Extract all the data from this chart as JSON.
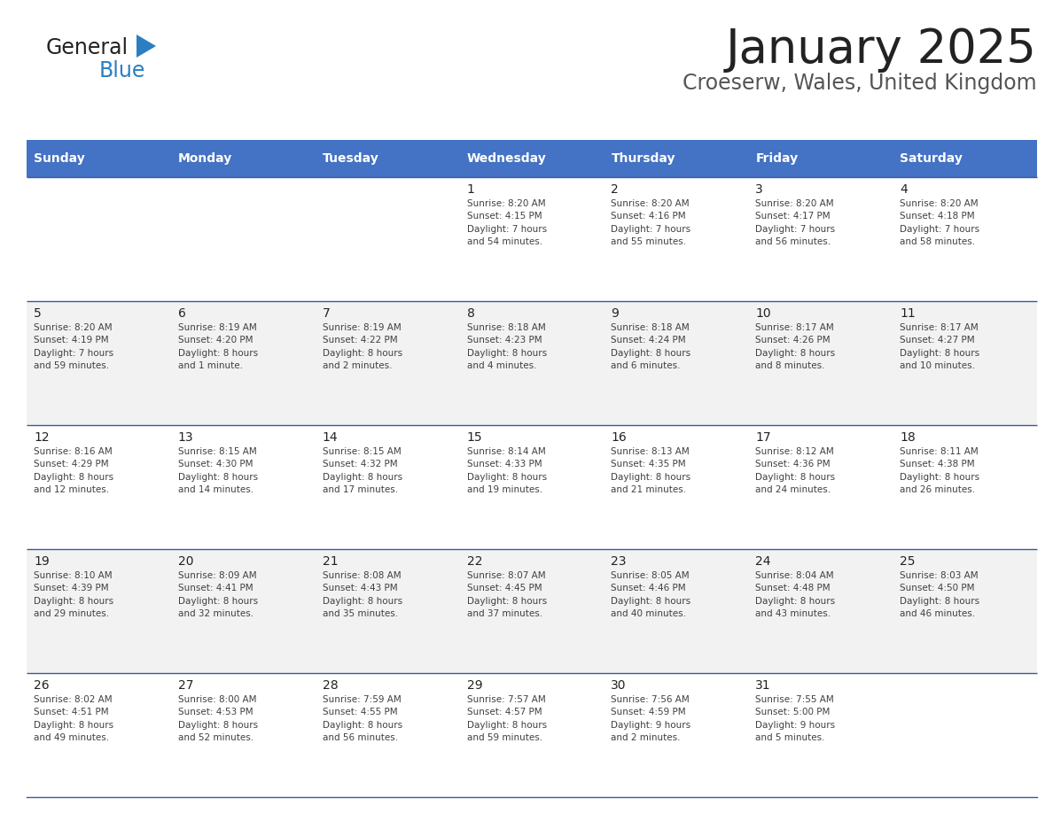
{
  "title": "January 2025",
  "subtitle": "Croeserw, Wales, United Kingdom",
  "header_bg": "#4472C4",
  "header_text_color": "#FFFFFF",
  "header_days": [
    "Sunday",
    "Monday",
    "Tuesday",
    "Wednesday",
    "Thursday",
    "Friday",
    "Saturday"
  ],
  "row_bg_even": "#FFFFFF",
  "row_bg_odd": "#F2F2F2",
  "separator_color": "#3A5A96",
  "cell_text_color": "#404040",
  "day_number_color": "#222222",
  "calendar": [
    [
      {
        "day": "",
        "info": ""
      },
      {
        "day": "",
        "info": ""
      },
      {
        "day": "",
        "info": ""
      },
      {
        "day": "1",
        "info": "Sunrise: 8:20 AM\nSunset: 4:15 PM\nDaylight: 7 hours\nand 54 minutes."
      },
      {
        "day": "2",
        "info": "Sunrise: 8:20 AM\nSunset: 4:16 PM\nDaylight: 7 hours\nand 55 minutes."
      },
      {
        "day": "3",
        "info": "Sunrise: 8:20 AM\nSunset: 4:17 PM\nDaylight: 7 hours\nand 56 minutes."
      },
      {
        "day": "4",
        "info": "Sunrise: 8:20 AM\nSunset: 4:18 PM\nDaylight: 7 hours\nand 58 minutes."
      }
    ],
    [
      {
        "day": "5",
        "info": "Sunrise: 8:20 AM\nSunset: 4:19 PM\nDaylight: 7 hours\nand 59 minutes."
      },
      {
        "day": "6",
        "info": "Sunrise: 8:19 AM\nSunset: 4:20 PM\nDaylight: 8 hours\nand 1 minute."
      },
      {
        "day": "7",
        "info": "Sunrise: 8:19 AM\nSunset: 4:22 PM\nDaylight: 8 hours\nand 2 minutes."
      },
      {
        "day": "8",
        "info": "Sunrise: 8:18 AM\nSunset: 4:23 PM\nDaylight: 8 hours\nand 4 minutes."
      },
      {
        "day": "9",
        "info": "Sunrise: 8:18 AM\nSunset: 4:24 PM\nDaylight: 8 hours\nand 6 minutes."
      },
      {
        "day": "10",
        "info": "Sunrise: 8:17 AM\nSunset: 4:26 PM\nDaylight: 8 hours\nand 8 minutes."
      },
      {
        "day": "11",
        "info": "Sunrise: 8:17 AM\nSunset: 4:27 PM\nDaylight: 8 hours\nand 10 minutes."
      }
    ],
    [
      {
        "day": "12",
        "info": "Sunrise: 8:16 AM\nSunset: 4:29 PM\nDaylight: 8 hours\nand 12 minutes."
      },
      {
        "day": "13",
        "info": "Sunrise: 8:15 AM\nSunset: 4:30 PM\nDaylight: 8 hours\nand 14 minutes."
      },
      {
        "day": "14",
        "info": "Sunrise: 8:15 AM\nSunset: 4:32 PM\nDaylight: 8 hours\nand 17 minutes."
      },
      {
        "day": "15",
        "info": "Sunrise: 8:14 AM\nSunset: 4:33 PM\nDaylight: 8 hours\nand 19 minutes."
      },
      {
        "day": "16",
        "info": "Sunrise: 8:13 AM\nSunset: 4:35 PM\nDaylight: 8 hours\nand 21 minutes."
      },
      {
        "day": "17",
        "info": "Sunrise: 8:12 AM\nSunset: 4:36 PM\nDaylight: 8 hours\nand 24 minutes."
      },
      {
        "day": "18",
        "info": "Sunrise: 8:11 AM\nSunset: 4:38 PM\nDaylight: 8 hours\nand 26 minutes."
      }
    ],
    [
      {
        "day": "19",
        "info": "Sunrise: 8:10 AM\nSunset: 4:39 PM\nDaylight: 8 hours\nand 29 minutes."
      },
      {
        "day": "20",
        "info": "Sunrise: 8:09 AM\nSunset: 4:41 PM\nDaylight: 8 hours\nand 32 minutes."
      },
      {
        "day": "21",
        "info": "Sunrise: 8:08 AM\nSunset: 4:43 PM\nDaylight: 8 hours\nand 35 minutes."
      },
      {
        "day": "22",
        "info": "Sunrise: 8:07 AM\nSunset: 4:45 PM\nDaylight: 8 hours\nand 37 minutes."
      },
      {
        "day": "23",
        "info": "Sunrise: 8:05 AM\nSunset: 4:46 PM\nDaylight: 8 hours\nand 40 minutes."
      },
      {
        "day": "24",
        "info": "Sunrise: 8:04 AM\nSunset: 4:48 PM\nDaylight: 8 hours\nand 43 minutes."
      },
      {
        "day": "25",
        "info": "Sunrise: 8:03 AM\nSunset: 4:50 PM\nDaylight: 8 hours\nand 46 minutes."
      }
    ],
    [
      {
        "day": "26",
        "info": "Sunrise: 8:02 AM\nSunset: 4:51 PM\nDaylight: 8 hours\nand 49 minutes."
      },
      {
        "day": "27",
        "info": "Sunrise: 8:00 AM\nSunset: 4:53 PM\nDaylight: 8 hours\nand 52 minutes."
      },
      {
        "day": "28",
        "info": "Sunrise: 7:59 AM\nSunset: 4:55 PM\nDaylight: 8 hours\nand 56 minutes."
      },
      {
        "day": "29",
        "info": "Sunrise: 7:57 AM\nSunset: 4:57 PM\nDaylight: 8 hours\nand 59 minutes."
      },
      {
        "day": "30",
        "info": "Sunrise: 7:56 AM\nSunset: 4:59 PM\nDaylight: 9 hours\nand 2 minutes."
      },
      {
        "day": "31",
        "info": "Sunrise: 7:55 AM\nSunset: 5:00 PM\nDaylight: 9 hours\nand 5 minutes."
      },
      {
        "day": "",
        "info": ""
      }
    ]
  ],
  "logo_general_color": "#222222",
  "logo_blue_color": "#2B7EC1",
  "title_color": "#222222",
  "subtitle_color": "#555555",
  "fig_width": 11.88,
  "fig_height": 9.18,
  "dpi": 100
}
